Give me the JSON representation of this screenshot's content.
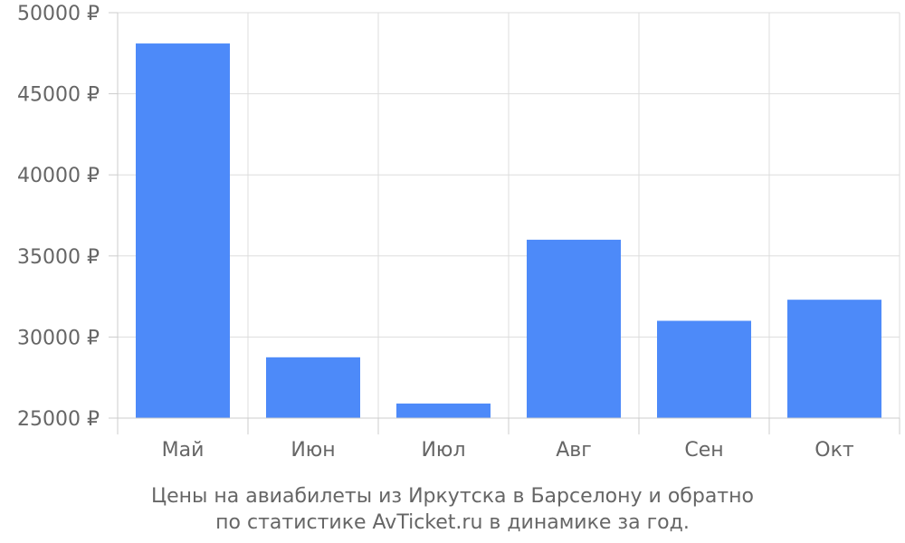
{
  "chart_data": {
    "type": "bar",
    "categories": [
      "Май",
      "Июн",
      "Июл",
      "Авг",
      "Сен",
      "Окт"
    ],
    "values": [
      48100,
      28750,
      25900,
      36000,
      31000,
      32300
    ],
    "ylim": [
      25000,
      50000
    ],
    "yticks": [
      25000,
      30000,
      35000,
      40000,
      45000,
      50000
    ],
    "ytick_labels": [
      "25000 ₽",
      "30000 ₽",
      "35000 ₽",
      "40000 ₽",
      "45000 ₽",
      "50000 ₽"
    ],
    "grid": true,
    "bar_color": "#4d8af9",
    "caption": [
      "Цены на авиабилеты из Иркутска в Барселону и обратно",
      "по статистике AvTicket.ru в динамике за год."
    ]
  }
}
